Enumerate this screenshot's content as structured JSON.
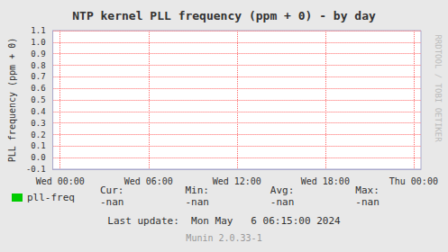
{
  "chart_data": {
    "type": "line",
    "title": "NTP kernel PLL frequency (ppm + 0) - by day",
    "ylabel": "PLL frequency (ppm + 0)",
    "x": [],
    "series": [
      {
        "name": "pll-freq",
        "color": "#00cc00",
        "values": []
      }
    ],
    "xlim": [
      -0.5,
      24.5
    ],
    "xticks": [
      {
        "value": 0,
        "label": "Wed 00:00"
      },
      {
        "value": 6,
        "label": "Wed 06:00"
      },
      {
        "value": 12,
        "label": "Wed 12:00"
      },
      {
        "value": 18,
        "label": "Wed 18:00"
      },
      {
        "value": 24,
        "label": "Thu 00:00"
      }
    ],
    "ylim": [
      -0.1,
      1.1
    ],
    "yticks": [
      -0.1,
      {
        "value": 0.0,
        "label": "0.0"
      },
      0.1,
      0.2,
      0.3,
      0.4,
      0.5,
      0.6,
      0.7,
      0.8,
      0.9,
      {
        "value": 1.0,
        "label": "1.0"
      },
      1.1
    ],
    "grid": true,
    "legend": "lower left",
    "annotations": [
      "Cur:",
      "-nan",
      "Min:",
      "-nan",
      "Avg:",
      "-nan",
      "Max:",
      "-nan",
      "Last update:  Mon May   6 06:15:00 2024",
      "Munin 2.0.33-1",
      "RRDTOOL / TOBI OETIKER"
    ]
  }
}
